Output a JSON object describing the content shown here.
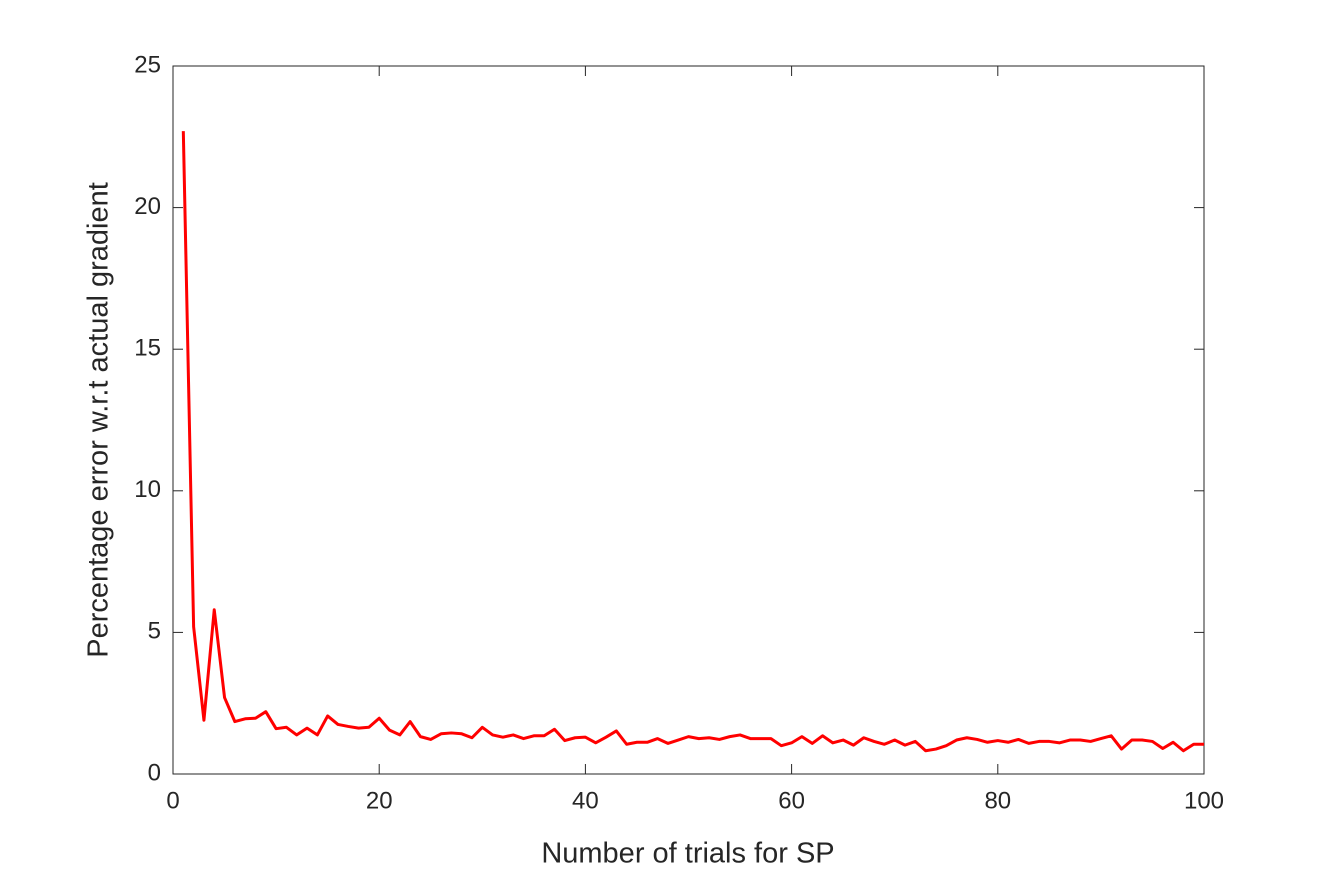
{
  "chart_data": {
    "type": "line",
    "x_label": "Number of trials for SP",
    "y_label": "Percentage error w.r.t actual gradient",
    "x": [
      1,
      2,
      3,
      4,
      5,
      6,
      7,
      8,
      9,
      10,
      11,
      12,
      13,
      14,
      15,
      16,
      17,
      18,
      19,
      20,
      21,
      22,
      23,
      24,
      25,
      26,
      27,
      28,
      29,
      30,
      31,
      32,
      33,
      34,
      35,
      36,
      37,
      38,
      39,
      40,
      41,
      42,
      43,
      44,
      45,
      46,
      47,
      48,
      49,
      50,
      51,
      52,
      53,
      54,
      55,
      56,
      57,
      58,
      59,
      60,
      61,
      62,
      63,
      64,
      65,
      66,
      67,
      68,
      69,
      70,
      71,
      72,
      73,
      74,
      75,
      76,
      77,
      78,
      79,
      80,
      81,
      82,
      83,
      84,
      85,
      86,
      87,
      88,
      89,
      90,
      91,
      92,
      93,
      94,
      95,
      96,
      97,
      98,
      99,
      100
    ],
    "values": [
      22.7,
      5.2,
      1.9,
      5.8,
      2.7,
      1.85,
      1.95,
      1.97,
      2.2,
      1.6,
      1.65,
      1.38,
      1.62,
      1.38,
      2.05,
      1.75,
      1.68,
      1.62,
      1.65,
      1.97,
      1.55,
      1.38,
      1.85,
      1.32,
      1.22,
      1.42,
      1.45,
      1.42,
      1.28,
      1.65,
      1.38,
      1.3,
      1.38,
      1.25,
      1.35,
      1.35,
      1.58,
      1.18,
      1.28,
      1.3,
      1.1,
      1.3,
      1.52,
      1.05,
      1.12,
      1.12,
      1.25,
      1.08,
      1.2,
      1.32,
      1.25,
      1.28,
      1.22,
      1.32,
      1.38,
      1.25,
      1.25,
      1.25,
      1.0,
      1.1,
      1.32,
      1.08,
      1.35,
      1.1,
      1.2,
      1.02,
      1.28,
      1.15,
      1.05,
      1.2,
      1.02,
      1.15,
      0.82,
      0.88,
      1.0,
      1.2,
      1.28,
      1.22,
      1.12,
      1.18,
      1.12,
      1.22,
      1.08,
      1.15,
      1.15,
      1.1,
      1.2,
      1.2,
      1.15,
      1.25,
      1.35,
      0.88,
      1.2,
      1.2,
      1.15,
      0.9,
      1.12,
      0.82,
      1.05,
      1.05
    ],
    "color": "#ff0000",
    "xlim": [
      0,
      100
    ],
    "xticks": [
      0,
      20,
      40,
      60,
      80,
      100
    ],
    "ylim": [
      0,
      25
    ],
    "yticks": [
      0,
      5,
      10,
      15,
      20,
      25
    ],
    "grid": false
  }
}
